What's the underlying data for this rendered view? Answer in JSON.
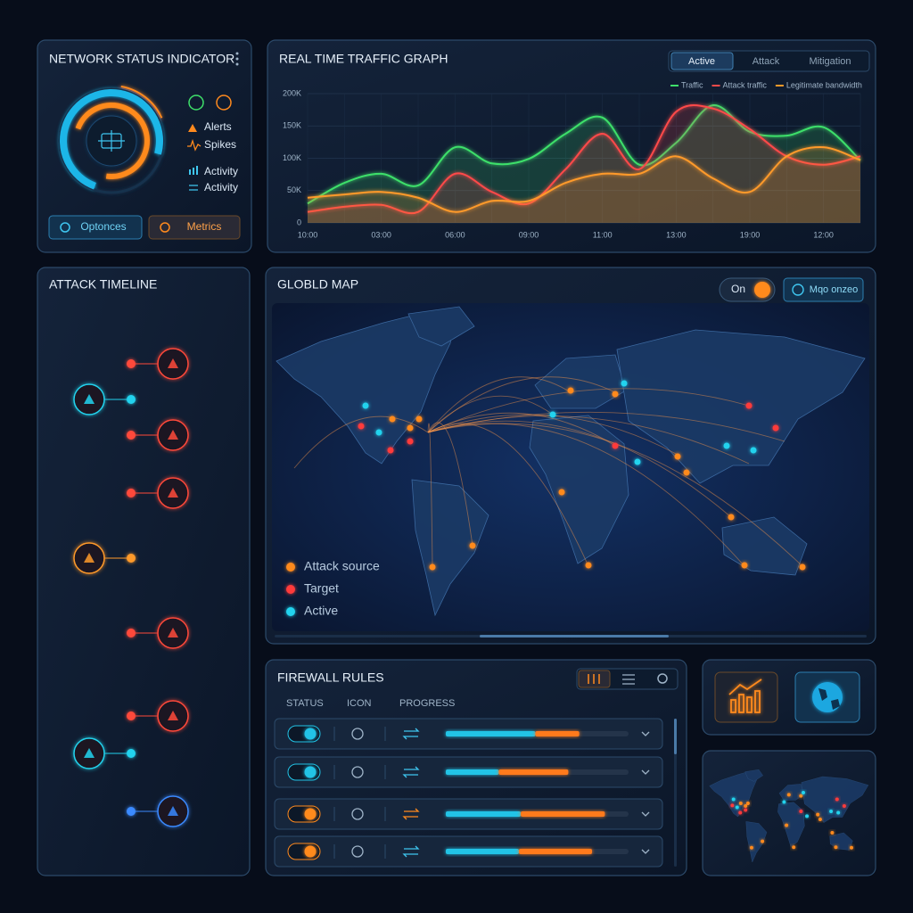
{
  "network_status": {
    "title": "NETWORK STATUS INDICATOR",
    "items": [
      "Alerts",
      "Spikes",
      "Activity",
      "Activity"
    ],
    "buttons": [
      "Optonces",
      "Metrics"
    ]
  },
  "traffic_graph": {
    "type": "line",
    "title": "REAL TIME TRAFFIC GRAPH",
    "tabs": [
      "Active",
      "Attack",
      "Mitigation"
    ],
    "categories": [
      "10:00",
      null,
      "03:00",
      null,
      "06:00",
      null,
      "09:00",
      null,
      "11:00",
      null,
      "13:00",
      null,
      "19:00",
      null,
      "12:00",
      null
    ],
    "series": [
      {
        "name": "Traffic",
        "color": "#3ee06a",
        "values": [
          30000,
          62000,
          76000,
          58000,
          117000,
          92000,
          99000,
          138000,
          163000,
          90000,
          124000,
          182000,
          141000,
          135000,
          148000,
          97000
        ]
      },
      {
        "name": "Attack traffic",
        "color": "#ff4a4a",
        "values": [
          17000,
          25000,
          28000,
          17000,
          76000,
          48000,
          30000,
          83000,
          138000,
          83000,
          172000,
          177000,
          145000,
          103000,
          90000,
          103000
        ]
      },
      {
        "name": "Legitimate bandwidth",
        "color": "#ff9a2a",
        "values": [
          39000,
          44000,
          48000,
          39000,
          17000,
          34000,
          34000,
          62000,
          76000,
          76000,
          103000,
          69000,
          48000,
          103000,
          117000,
          97000
        ]
      }
    ],
    "ylim": [
      0,
      200000
    ],
    "yticks": [
      0,
      {
        "value": 50000,
        "label": "50K"
      },
      {
        "value": 100000,
        "label": "100K"
      },
      {
        "value": 150000,
        "label": "150K"
      },
      {
        "value": 200000,
        "label": "200K"
      }
    ],
    "grid": true
  },
  "attack_timeline": {
    "title": "ATTACK TIMELINE"
  },
  "global_map": {
    "title": "GLOBLD MAP",
    "toggle": "On",
    "button": "Mqo onzeo",
    "legend": [
      {
        "name": "Attack source",
        "color": "#ff8a1e"
      },
      {
        "name": "Target",
        "color": "#ff3b3b"
      },
      {
        "name": "Active",
        "color": "#22d3ee"
      }
    ]
  },
  "firewall_rules": {
    "title": "FIREWALL RULES",
    "columns": [
      "STATUS",
      "ICON",
      "PROGRESS"
    ],
    "progress_colors": [
      "#22c3e6",
      "#ff7a1a"
    ],
    "rows": [
      {
        "progress": [
          49,
          24
        ]
      },
      {
        "progress": [
          29,
          38
        ]
      },
      {
        "progress": [
          41,
          46
        ]
      },
      {
        "progress": [
          40,
          40
        ]
      }
    ]
  }
}
